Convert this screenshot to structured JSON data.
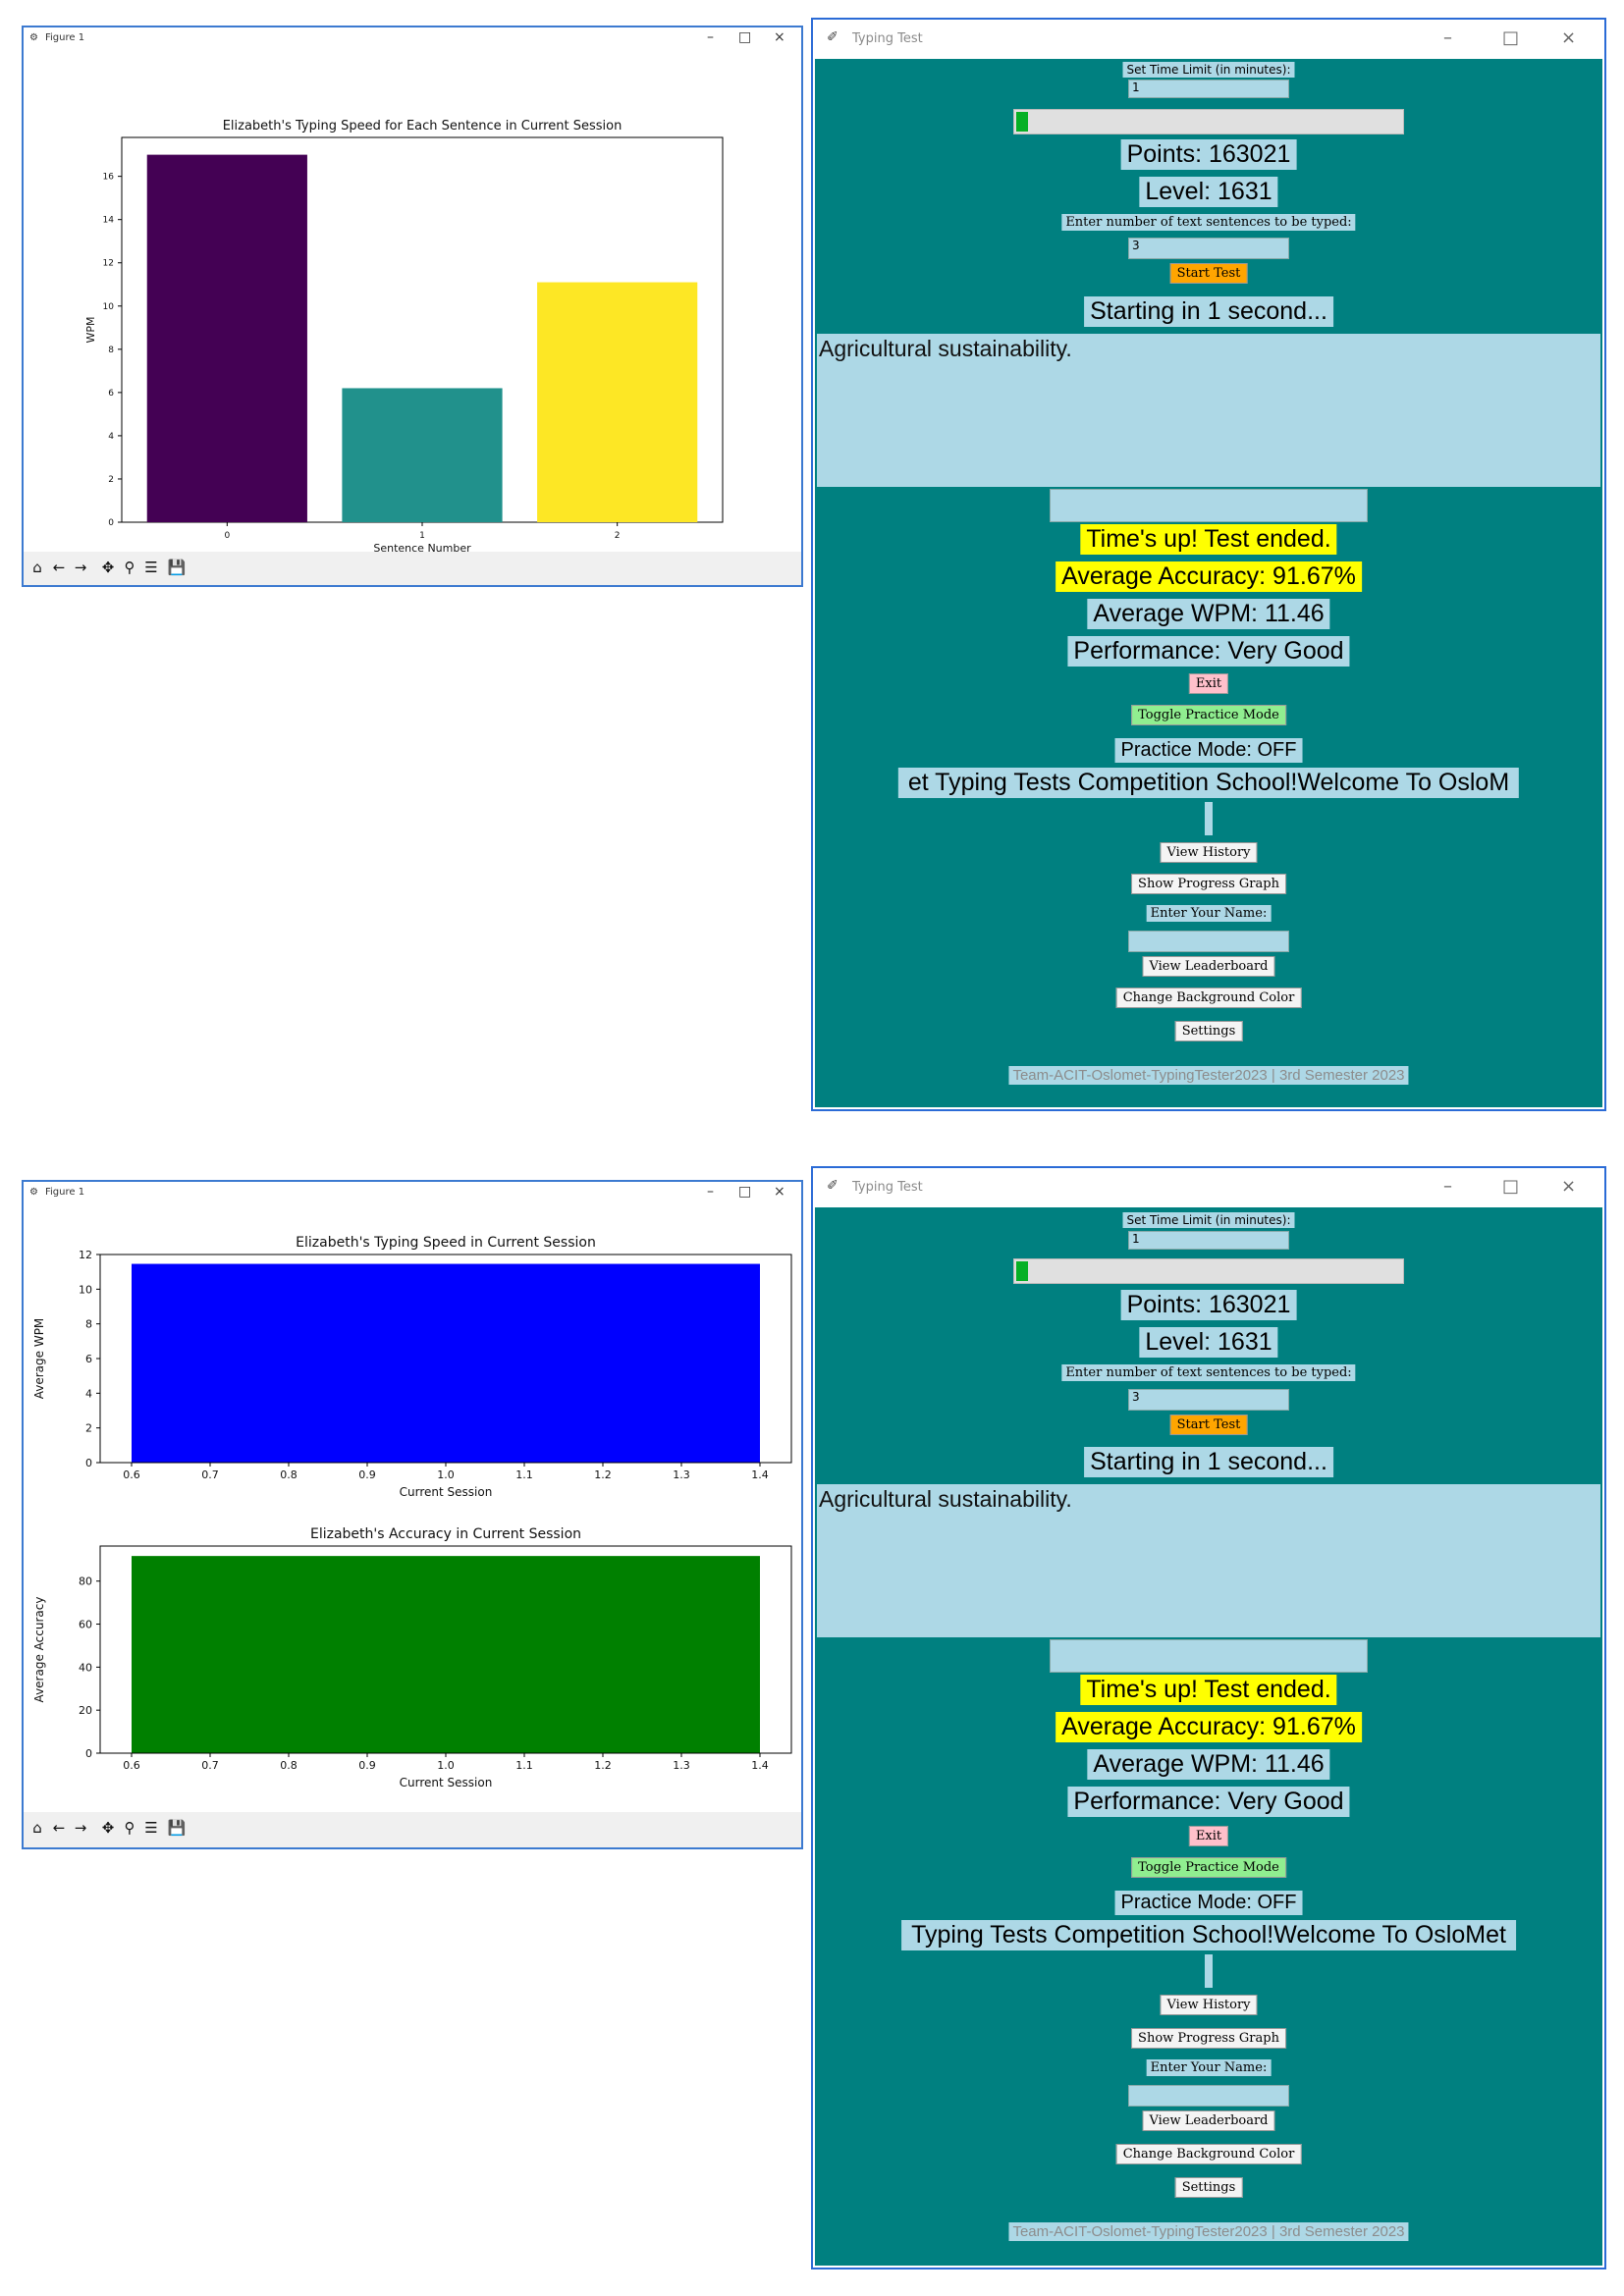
{
  "fig1": {
    "window_title": "Figure 1",
    "chart_data": {
      "type": "bar",
      "title": "Elizabeth's Typing Speed for Each Sentence in Current Session",
      "xlabel": "Sentence Number",
      "ylabel": "WPM",
      "categories": [
        "0",
        "1",
        "2"
      ],
      "values": [
        17.0,
        6.2,
        11.1
      ],
      "colors": [
        "#440154",
        "#21918c",
        "#fde725"
      ],
      "ylim": [
        0,
        17.8
      ],
      "yticks": [
        0,
        2,
        4,
        6,
        8,
        10,
        12,
        14,
        16
      ]
    }
  },
  "fig2": {
    "window_title": "Figure 1",
    "chart_data": [
      {
        "type": "bar",
        "title": "Elizabeth's Typing Speed in Current Session",
        "xlabel": "Current Session",
        "ylabel": "Average WPM",
        "x": [
          1.0
        ],
        "values": [
          11.46
        ],
        "bar_range": [
          0.6,
          1.4
        ],
        "color": "#0000ff",
        "xlim": [
          0.56,
          1.44
        ],
        "ylim": [
          0,
          12.0
        ],
        "xticks": [
          "0.6",
          "0.7",
          "0.8",
          "0.9",
          "1.0",
          "1.1",
          "1.2",
          "1.3",
          "1.4"
        ],
        "yticks": [
          0,
          2,
          4,
          6,
          8,
          10,
          12
        ]
      },
      {
        "type": "bar",
        "title": "Elizabeth's Accuracy in Current Session",
        "xlabel": "Current Session",
        "ylabel": "Average Accuracy",
        "x": [
          1.0
        ],
        "values": [
          91.67
        ],
        "bar_range": [
          0.6,
          1.4
        ],
        "color": "#008000",
        "xlim": [
          0.56,
          1.44
        ],
        "ylim": [
          0,
          96.3
        ],
        "xticks": [
          "0.6",
          "0.7",
          "0.8",
          "0.9",
          "1.0",
          "1.1",
          "1.2",
          "1.3",
          "1.4"
        ],
        "yticks": [
          0,
          20,
          40,
          60,
          80
        ]
      }
    ]
  },
  "app1": {
    "window_title": "Typing Test",
    "time_limit_label": "Set Time Limit (in minutes):",
    "time_limit_value": "1",
    "progress": 0.02,
    "points": "Points: 163021",
    "level": "Level: 1631",
    "sentences_label": "Enter number of text sentences to be typed:",
    "sentences_value": "3",
    "start_button": "Start Test",
    "countdown": "Starting in 1 second...",
    "sentence_text": "Agricultural sustainability.",
    "times_up": "Time's up! Test ended.",
    "accuracy": "Average Accuracy: 91.67%",
    "wpm": "Average WPM: 11.46",
    "performance": "Performance: Very Good",
    "exit_button": "Exit",
    "practice_button": "Toggle Practice Mode",
    "practice_status": "Practice Mode: OFF",
    "marquee": "et Typing Tests Competition School!Welcome To OsloM",
    "history_button": "View History",
    "progress_graph_button": "Show Progress Graph",
    "name_label": "Enter Your Name:",
    "leaderboard_button": "View Leaderboard",
    "bg_color_button": "Change Background Color",
    "settings_button": "Settings",
    "footer": "Team-ACIT-Oslomet-TypingTester2023 | 3rd Semester 2023"
  },
  "app2": {
    "window_title": "Typing Test",
    "time_limit_label": "Set Time Limit (in minutes):",
    "time_limit_value": "1",
    "progress": 0.02,
    "points": "Points: 163021",
    "level": "Level: 1631",
    "sentences_label": "Enter number of text sentences to be typed:",
    "sentences_value": "3",
    "start_button": "Start Test",
    "countdown": "Starting in 1 second...",
    "sentence_text": "Agricultural sustainability.",
    "times_up": "Time's up! Test ended.",
    "accuracy": "Average Accuracy: 91.67%",
    "wpm": "Average WPM: 11.46",
    "performance": "Performance: Very Good",
    "exit_button": "Exit",
    "practice_button": "Toggle Practice Mode",
    "practice_status": "Practice Mode: OFF",
    "marquee": "Typing Tests Competition School!Welcome To OsloMet",
    "history_button": "View History",
    "progress_graph_button": "Show Progress Graph",
    "name_label": "Enter Your Name:",
    "leaderboard_button": "View Leaderboard",
    "bg_color_button": "Change Background Color",
    "settings_button": "Settings",
    "footer": "Team-ACIT-Oslomet-TypingTester2023 | 3rd Semester 2023"
  },
  "icons": {
    "figure_icon": "matplotlib-icon",
    "app_icon": "feather-icon",
    "toolbar": [
      "home-icon",
      "back-arrow-icon",
      "forward-arrow-icon",
      "pan-icon",
      "zoom-icon",
      "configure-subplots-icon",
      "save-icon"
    ]
  }
}
